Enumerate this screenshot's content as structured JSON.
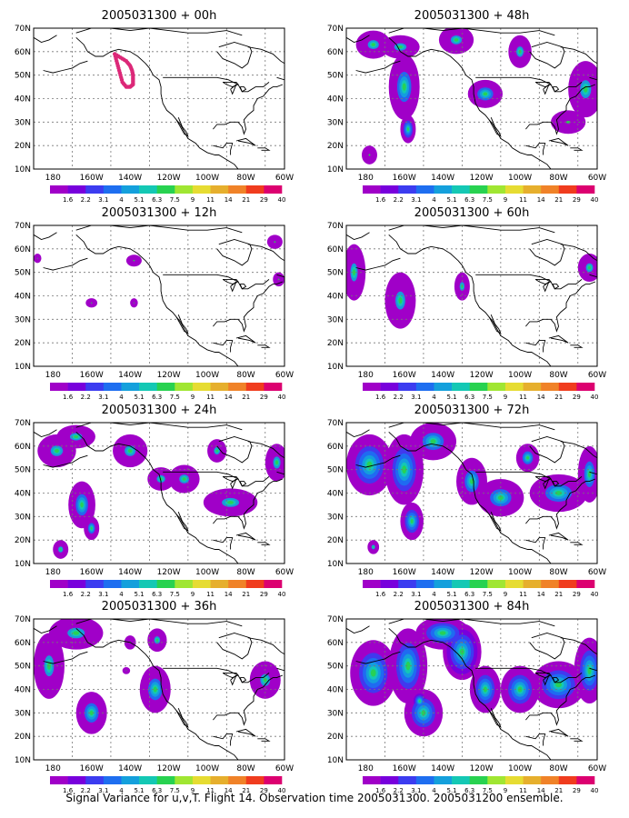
{
  "caption": "Signal Variance for u,v,T. Flight 14. Observation time 2005031300. 2005031200 ensemble.",
  "lat_labels": [
    "70N",
    "60N",
    "50N",
    "40N",
    "30N",
    "20N",
    "10N"
  ],
  "lon_labels": [
    "180",
    "160W",
    "140W",
    "120W",
    "100W",
    "80W",
    "60W"
  ],
  "map_extent": {
    "lon_min": -190,
    "lon_max": -60,
    "lat_min": 10,
    "lat_max": 70
  },
  "colorbar": {
    "labels": [
      "1.6",
      "2.2",
      "3.1",
      "4",
      "5.1",
      "6.3",
      "7.5",
      "9",
      "11",
      "14",
      "21",
      "29",
      "40"
    ],
    "colors": [
      "#a000c8",
      "#7800dc",
      "#3c3cf0",
      "#1e6ef0",
      "#14a0dc",
      "#14c8b4",
      "#28d250",
      "#a0e632",
      "#e6dc32",
      "#e6af2d",
      "#f08228",
      "#f03c1e",
      "#dc0070"
    ]
  },
  "marker_color": "#dc2878",
  "panels": [
    {
      "title": "2005031300 + 00h"
    },
    {
      "title": "2005031300 + 48h"
    },
    {
      "title": "2005031300 + 12h"
    },
    {
      "title": "2005031300 + 60h"
    },
    {
      "title": "2005031300 + 24h"
    },
    {
      "title": "2005031300 + 72h"
    },
    {
      "title": "2005031300 + 36h"
    },
    {
      "title": "2005031300 + 84h"
    }
  ]
}
